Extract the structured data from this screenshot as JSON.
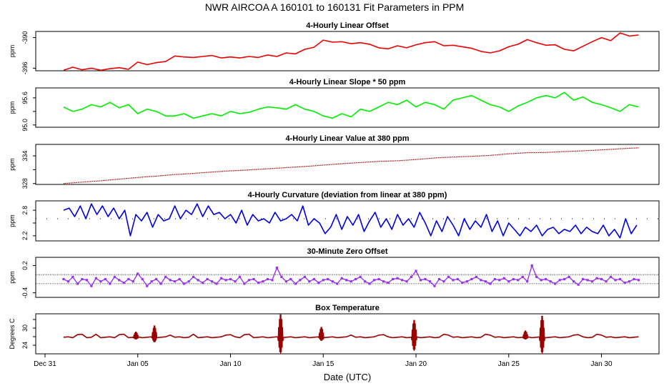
{
  "title": "NWR   AIRCOA A   160101 to 160131   Fit Parameters in PPM",
  "xlabel": "Date (UTC)",
  "x_ticks": [
    {
      "label": "Dec 31",
      "day": 0
    },
    {
      "label": "Jan 05",
      "day": 5
    },
    {
      "label": "Jan 10",
      "day": 10
    },
    {
      "label": "Jan 15",
      "day": 15
    },
    {
      "label": "Jan 20",
      "day": 20
    },
    {
      "label": "Jan 25",
      "day": 25
    },
    {
      "label": "Jan 30",
      "day": 30
    }
  ],
  "x_range_days": [
    -0.5,
    33.1
  ],
  "colors": {
    "offset": "#ee0000",
    "slope": "#00ee00",
    "value": "#990000",
    "curvature": "#0000dd",
    "zero": "#9933ee",
    "temp": "#990000",
    "ref": "#000000"
  },
  "chart_data": [
    {
      "type": "line",
      "id": "offset",
      "title": "4-Hourly Linear Offset",
      "ylabel": "ppm",
      "ylim": [
        -396.5,
        -388.8
      ],
      "yticks": [
        -396,
        -390
      ],
      "series": [
        {
          "name": "offset",
          "x": [
            1.0,
            1.5,
            2.0,
            2.5,
            3.0,
            3.5,
            4.0,
            4.5,
            5.0,
            5.5,
            6.0,
            6.5,
            7.0,
            7.5,
            8.0,
            8.5,
            9.0,
            9.5,
            10.0,
            10.5,
            11.0,
            11.5,
            12.0,
            12.5,
            13.0,
            13.5,
            14.0,
            14.5,
            15.0,
            15.5,
            16.0,
            16.5,
            17.0,
            17.5,
            18.0,
            18.5,
            19.0,
            19.5,
            20.0,
            20.5,
            21.0,
            21.5,
            22.0,
            22.5,
            23.0,
            23.5,
            24.0,
            24.5,
            25.0,
            25.5,
            26.0,
            26.5,
            27.0,
            27.5,
            28.0,
            28.5,
            29.0,
            29.5,
            30.0,
            30.5,
            31.0,
            31.5,
            32.0
          ],
          "y": [
            -396.4,
            -395.8,
            -396.3,
            -396.0,
            -396.4,
            -396.1,
            -395.9,
            -396.2,
            -394.8,
            -395.3,
            -394.9,
            -394.7,
            -393.6,
            -393.8,
            -393.9,
            -393.7,
            -393.5,
            -394.0,
            -393.8,
            -394.0,
            -393.7,
            -393.9,
            -393.4,
            -393.7,
            -393.0,
            -393.2,
            -392.3,
            -391.9,
            -390.5,
            -390.9,
            -390.8,
            -391.2,
            -391.0,
            -391.3,
            -392.0,
            -392.2,
            -391.6,
            -392.0,
            -391.4,
            -391.0,
            -390.8,
            -391.6,
            -391.5,
            -391.8,
            -392.1,
            -392.7,
            -393.0,
            -392.6,
            -391.8,
            -391.3,
            -390.4,
            -391.0,
            -391.5,
            -391.4,
            -392.3,
            -392.6,
            -391.7,
            -390.8,
            -390.0,
            -390.6,
            -389.1,
            -389.7,
            -389.5
          ]
        }
      ]
    },
    {
      "type": "line",
      "id": "slope",
      "title": "4-Hourly Linear Slope * 50 ppm",
      "ylabel": "ppm",
      "ylim": [
        94.95,
        95.82
      ],
      "yticks": [
        95.0,
        95.3,
        95.6
      ],
      "ytick_labels": [
        "95.0",
        "",
        "95.6"
      ],
      "series": [
        {
          "name": "slope",
          "x": [
            1.0,
            1.5,
            2.0,
            2.5,
            3.0,
            3.5,
            4.0,
            4.5,
            5.0,
            5.5,
            6.0,
            6.5,
            7.0,
            7.5,
            8.0,
            8.5,
            9.0,
            9.5,
            10.0,
            10.5,
            11.0,
            11.5,
            12.0,
            12.5,
            13.0,
            13.5,
            14.0,
            14.5,
            15.0,
            15.5,
            16.0,
            16.5,
            17.0,
            17.5,
            18.0,
            18.5,
            19.0,
            19.5,
            20.0,
            20.5,
            21.0,
            21.5,
            22.0,
            22.5,
            23.0,
            23.5,
            24.0,
            24.5,
            25.0,
            25.5,
            26.0,
            26.5,
            27.0,
            27.5,
            28.0,
            28.5,
            29.0,
            29.5,
            30.0,
            30.5,
            31.0,
            31.5,
            32.0
          ],
          "y": [
            95.4,
            95.3,
            95.35,
            95.45,
            95.4,
            95.5,
            95.38,
            95.45,
            95.25,
            95.35,
            95.3,
            95.2,
            95.2,
            95.25,
            95.15,
            95.2,
            95.25,
            95.2,
            95.3,
            95.25,
            95.28,
            95.35,
            95.4,
            95.38,
            95.35,
            95.45,
            95.35,
            95.3,
            95.2,
            95.15,
            95.25,
            95.18,
            95.35,
            95.3,
            95.4,
            95.5,
            95.45,
            95.55,
            95.4,
            95.5,
            95.45,
            95.35,
            95.55,
            95.6,
            95.65,
            95.55,
            95.45,
            95.4,
            95.3,
            95.42,
            95.5,
            95.6,
            95.65,
            95.6,
            95.72,
            95.55,
            95.62,
            95.5,
            95.45,
            95.38,
            95.3,
            95.45,
            95.4
          ]
        }
      ]
    },
    {
      "type": "line",
      "id": "value",
      "title": "4-Hourly Linear Value at 380 ppm",
      "ylabel": "ppm",
      "ylim": [
        327.8,
        336.5
      ],
      "yticks": [
        328,
        331,
        334
      ],
      "ytick_labels": [
        "328",
        "",
        "334"
      ],
      "series": [
        {
          "name": "value",
          "x": [
            1.0,
            2.0,
            3.0,
            4.0,
            5.0,
            6.0,
            7.0,
            8.0,
            9.0,
            10.0,
            11.0,
            12.0,
            13.0,
            14.0,
            15.0,
            16.0,
            17.0,
            18.0,
            19.0,
            20.0,
            21.0,
            22.0,
            23.0,
            24.0,
            25.0,
            26.0,
            27.0,
            28.0,
            29.0,
            30.0,
            31.0,
            32.0
          ],
          "y": [
            328.0,
            328.3,
            328.6,
            328.95,
            329.3,
            329.6,
            329.95,
            330.2,
            330.5,
            330.75,
            330.95,
            331.2,
            331.45,
            331.7,
            332.0,
            332.3,
            332.55,
            332.8,
            332.95,
            333.2,
            333.55,
            333.75,
            333.9,
            334.1,
            334.45,
            334.7,
            334.75,
            334.95,
            335.1,
            335.3,
            335.55,
            335.75
          ]
        }
      ]
    },
    {
      "type": "line",
      "id": "curvature",
      "title": "4-Hourly Curvature (deviation from linear at 380 ppm)",
      "ylabel": "ppm",
      "ylim": [
        2.08,
        3.02
      ],
      "yticks": [
        2.2,
        2.5,
        2.8
      ],
      "ytick_labels": [
        "2.2",
        "",
        "2.8"
      ],
      "reference_line": 2.6,
      "series": [
        {
          "name": "curvature",
          "x": [
            1.0,
            1.3,
            1.6,
            1.9,
            2.2,
            2.5,
            2.8,
            3.1,
            3.4,
            3.7,
            4.0,
            4.3,
            4.6,
            4.9,
            5.2,
            5.5,
            5.8,
            6.1,
            6.4,
            6.7,
            7.0,
            7.3,
            7.6,
            7.9,
            8.2,
            8.5,
            8.8,
            9.1,
            9.4,
            9.7,
            10.0,
            10.3,
            10.6,
            10.9,
            11.2,
            11.5,
            11.8,
            12.1,
            12.4,
            12.7,
            13.0,
            13.3,
            13.6,
            13.9,
            14.2,
            14.5,
            14.8,
            15.1,
            15.4,
            15.7,
            16.0,
            16.3,
            16.6,
            16.9,
            17.2,
            17.5,
            17.8,
            18.1,
            18.4,
            18.7,
            19.0,
            19.3,
            19.6,
            19.9,
            20.2,
            20.5,
            20.8,
            21.1,
            21.4,
            21.7,
            22.0,
            22.3,
            22.6,
            22.9,
            23.2,
            23.5,
            23.8,
            24.1,
            24.4,
            24.7,
            25.0,
            25.3,
            25.6,
            25.9,
            26.2,
            26.5,
            26.8,
            27.1,
            27.4,
            27.7,
            28.0,
            28.3,
            28.6,
            28.9,
            29.2,
            29.5,
            29.8,
            30.1,
            30.4,
            30.7,
            31.0,
            31.3,
            31.6,
            31.9
          ],
          "y": [
            2.8,
            2.85,
            2.65,
            2.9,
            2.6,
            2.95,
            2.7,
            2.9,
            2.65,
            2.85,
            2.6,
            2.8,
            2.2,
            2.7,
            2.55,
            2.75,
            2.4,
            2.7,
            2.55,
            2.6,
            2.9,
            2.6,
            2.8,
            2.7,
            2.95,
            2.65,
            2.9,
            2.7,
            2.75,
            2.6,
            2.7,
            2.5,
            2.8,
            2.45,
            2.7,
            2.55,
            2.6,
            2.5,
            2.75,
            2.55,
            2.6,
            2.7,
            2.55,
            2.9,
            2.45,
            2.6,
            2.5,
            2.25,
            2.4,
            2.7,
            2.35,
            2.65,
            2.45,
            2.7,
            2.3,
            2.55,
            2.75,
            2.4,
            2.6,
            2.35,
            2.7,
            2.45,
            2.6,
            2.4,
            2.75,
            2.5,
            2.2,
            2.55,
            2.3,
            2.65,
            2.45,
            2.2,
            2.6,
            2.35,
            2.55,
            2.4,
            2.7,
            2.3,
            2.55,
            2.2,
            2.5,
            2.35,
            2.2,
            2.4,
            2.3,
            2.45,
            2.2,
            2.35,
            2.4,
            2.25,
            2.35,
            2.3,
            2.45,
            2.25,
            2.4,
            2.3,
            2.25,
            2.45,
            2.2,
            2.35,
            2.15,
            2.6,
            2.25,
            2.45
          ]
        }
      ]
    },
    {
      "type": "scatter",
      "id": "zero",
      "title": "30-Minute Zero Offset",
      "ylabel": "ppm",
      "ylim": [
        -0.5,
        0.38
      ],
      "yticks": [
        -0.4,
        0.2
      ],
      "reference_lines": [
        0.0,
        -0.2
      ],
      "series": [
        {
          "name": "zero",
          "x": [
            1.0,
            1.25,
            1.5,
            1.75,
            2.0,
            2.25,
            2.5,
            2.75,
            3.0,
            3.25,
            3.5,
            3.75,
            4.0,
            4.25,
            4.5,
            4.75,
            5.0,
            5.25,
            5.5,
            5.75,
            6.0,
            6.25,
            6.5,
            6.75,
            7.0,
            7.25,
            7.5,
            7.75,
            8.0,
            8.25,
            8.5,
            8.75,
            9.0,
            9.25,
            9.5,
            9.75,
            10.0,
            10.25,
            10.5,
            10.75,
            11.0,
            11.25,
            11.5,
            11.75,
            12.0,
            12.25,
            12.5,
            12.75,
            13.0,
            13.25,
            13.5,
            13.75,
            14.0,
            14.25,
            14.5,
            14.75,
            15.0,
            15.25,
            15.5,
            15.75,
            16.0,
            16.25,
            16.5,
            16.75,
            17.0,
            17.25,
            17.5,
            17.75,
            18.0,
            18.25,
            18.5,
            18.75,
            19.0,
            19.25,
            19.5,
            19.75,
            20.0,
            20.25,
            20.5,
            20.75,
            21.0,
            21.25,
            21.5,
            21.75,
            22.0,
            22.25,
            22.5,
            22.75,
            23.0,
            23.25,
            23.5,
            23.75,
            24.0,
            24.25,
            24.5,
            24.75,
            25.0,
            25.25,
            25.5,
            25.75,
            26.0,
            26.25,
            26.5,
            26.75,
            27.0,
            27.25,
            27.5,
            27.75,
            28.0,
            28.25,
            28.5,
            28.75,
            29.0,
            29.25,
            29.5,
            29.75,
            30.0,
            30.25,
            30.5,
            30.75,
            31.0,
            31.25,
            31.5,
            31.75,
            32.0
          ],
          "y": [
            -0.1,
            -0.15,
            -0.05,
            -0.2,
            -0.1,
            -0.12,
            -0.25,
            -0.08,
            -0.15,
            -0.1,
            -0.2,
            -0.05,
            -0.12,
            -0.18,
            -0.1,
            -0.15,
            0.02,
            -0.1,
            -0.25,
            -0.15,
            -0.1,
            -0.2,
            -0.05,
            -0.12,
            -0.15,
            -0.1,
            -0.2,
            -0.15,
            -0.05,
            -0.12,
            -0.18,
            -0.1,
            -0.15,
            -0.2,
            -0.08,
            -0.12,
            -0.1,
            -0.15,
            -0.05,
            -0.2,
            -0.12,
            -0.1,
            -0.18,
            -0.15,
            -0.1,
            -0.12,
            0.15,
            -0.05,
            -0.15,
            -0.1,
            -0.2,
            -0.12,
            -0.05,
            -0.15,
            -0.1,
            -0.18,
            -0.12,
            -0.1,
            -0.15,
            -0.2,
            -0.08,
            -0.12,
            -0.15,
            -0.1,
            -0.05,
            -0.15,
            -0.2,
            -0.12,
            -0.1,
            -0.15,
            -0.18,
            -0.1,
            -0.08,
            -0.12,
            -0.15,
            -0.05,
            0.08,
            -0.12,
            -0.1,
            -0.15,
            -0.25,
            -0.1,
            -0.15,
            -0.05,
            -0.12,
            -0.1,
            -0.18,
            -0.15,
            -0.1,
            -0.05,
            -0.12,
            -0.15,
            -0.2,
            -0.1,
            -0.12,
            -0.08,
            -0.15,
            -0.1,
            -0.12,
            -0.05,
            -0.15,
            0.2,
            -0.05,
            -0.12,
            -0.1,
            -0.15,
            -0.2,
            -0.12,
            -0.1,
            -0.05,
            -0.15,
            -0.22,
            -0.1,
            -0.12,
            -0.15,
            -0.08,
            -0.1,
            -0.15,
            -0.05,
            -0.12,
            -0.1,
            -0.18,
            -0.15,
            -0.1,
            -0.12
          ]
        }
      ]
    },
    {
      "type": "line",
      "id": "temp",
      "title": "Box Temperature",
      "ylabel": "Degrees C",
      "ylim": [
        21.0,
        35.0
      ],
      "yticks": [
        24,
        27,
        30,
        33
      ],
      "ytick_labels": [
        "24",
        "",
        "30",
        ""
      ],
      "baseline": 26.8,
      "spikes": [
        {
          "day": 4.9,
          "high": 28.8,
          "low": 26.0
        },
        {
          "day": 5.9,
          "high": 31.0,
          "low": 25.0
        },
        {
          "day": 12.7,
          "high": 35.0,
          "low": 21.0
        },
        {
          "day": 14.9,
          "high": 30.5,
          "low": 25.5
        },
        {
          "day": 19.9,
          "high": 33.0,
          "low": 22.0
        },
        {
          "day": 25.9,
          "high": 29.2,
          "low": 26.0
        },
        {
          "day": 26.8,
          "high": 34.5,
          "low": 21.0
        }
      ],
      "bumps": [
        1.9,
        2.8,
        4.1,
        6.7,
        8.0,
        9.8,
        10.9,
        16.5,
        18.1,
        21.7,
        23.9,
        28.7,
        29.9
      ]
    }
  ]
}
